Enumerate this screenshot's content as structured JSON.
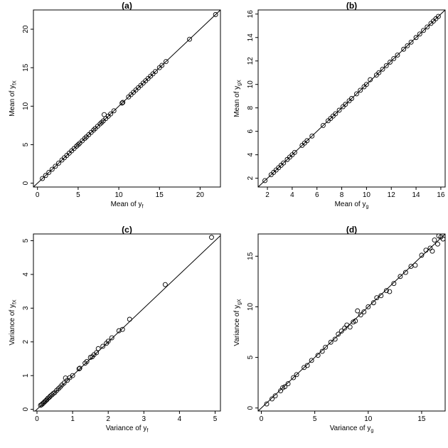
{
  "chart_data": [
    {
      "id": "a",
      "type": "scatter",
      "title": "(a)",
      "xlabel": {
        "main": "Mean of y",
        "sub": "f"
      },
      "ylabel": {
        "main": "Mean of y",
        "sub": "fX"
      },
      "xlim": [
        -0.5,
        22.5
      ],
      "ylim": [
        -0.5,
        22.5
      ],
      "xticks": [
        0,
        5,
        10,
        15,
        20
      ],
      "yticks": [
        0,
        5,
        10,
        15,
        20
      ],
      "reference_line": "y = x",
      "points": [
        [
          0.6,
          0.6
        ],
        [
          1.0,
          1.0
        ],
        [
          1.4,
          1.4
        ],
        [
          1.8,
          1.8
        ],
        [
          2.2,
          2.2
        ],
        [
          2.6,
          2.6
        ],
        [
          3.0,
          3.0
        ],
        [
          3.3,
          3.3
        ],
        [
          3.6,
          3.6
        ],
        [
          3.9,
          3.9
        ],
        [
          4.2,
          4.2
        ],
        [
          4.5,
          4.5
        ],
        [
          4.8,
          4.8
        ],
        [
          5.0,
          5.0
        ],
        [
          5.2,
          5.2
        ],
        [
          5.5,
          5.5
        ],
        [
          5.8,
          5.8
        ],
        [
          6.0,
          6.0
        ],
        [
          6.3,
          6.3
        ],
        [
          6.6,
          6.6
        ],
        [
          6.9,
          6.9
        ],
        [
          7.1,
          7.1
        ],
        [
          7.4,
          7.4
        ],
        [
          7.7,
          7.7
        ],
        [
          7.9,
          7.9
        ],
        [
          8.1,
          8.1
        ],
        [
          8.2,
          8.9
        ],
        [
          8.4,
          8.4
        ],
        [
          8.7,
          8.7
        ],
        [
          9.0,
          9.0
        ],
        [
          9.4,
          9.4
        ],
        [
          10.4,
          10.4
        ],
        [
          10.5,
          10.5
        ],
        [
          11.2,
          11.2
        ],
        [
          11.5,
          11.5
        ],
        [
          11.8,
          11.8
        ],
        [
          12.1,
          12.1
        ],
        [
          12.4,
          12.4
        ],
        [
          12.7,
          12.7
        ],
        [
          13.0,
          13.0
        ],
        [
          13.3,
          13.3
        ],
        [
          13.6,
          13.6
        ],
        [
          13.9,
          13.9
        ],
        [
          14.2,
          14.2
        ],
        [
          14.5,
          14.5
        ],
        [
          15.0,
          15.0
        ],
        [
          15.3,
          15.3
        ],
        [
          15.8,
          15.8
        ],
        [
          18.7,
          18.7
        ],
        [
          21.9,
          21.9
        ]
      ]
    },
    {
      "id": "b",
      "type": "scatter",
      "title": "(b)",
      "xlabel": {
        "main": "Mean of y",
        "sub": "g"
      },
      "ylabel": {
        "main": "Mean of y",
        "sub": "gX"
      },
      "xlim": [
        1.25,
        16.35
      ],
      "ylim": [
        1.25,
        16.35
      ],
      "xticks": [
        2,
        4,
        6,
        8,
        10,
        12,
        14,
        16
      ],
      "yticks": [
        2,
        4,
        6,
        8,
        10,
        12,
        14,
        16
      ],
      "reference_line": "y = x",
      "points": [
        [
          1.8,
          1.8
        ],
        [
          2.3,
          2.3
        ],
        [
          2.5,
          2.5
        ],
        [
          2.7,
          2.7
        ],
        [
          2.9,
          2.9
        ],
        [
          3.1,
          3.1
        ],
        [
          3.3,
          3.3
        ],
        [
          3.6,
          3.6
        ],
        [
          3.8,
          3.8
        ],
        [
          4.0,
          4.0
        ],
        [
          4.2,
          4.2
        ],
        [
          4.8,
          4.8
        ],
        [
          5.0,
          5.0
        ],
        [
          5.2,
          5.2
        ],
        [
          5.6,
          5.6
        ],
        [
          6.5,
          6.5
        ],
        [
          6.9,
          6.9
        ],
        [
          7.1,
          7.1
        ],
        [
          7.3,
          7.3
        ],
        [
          7.5,
          7.5
        ],
        [
          7.8,
          7.8
        ],
        [
          8.1,
          8.1
        ],
        [
          8.3,
          8.3
        ],
        [
          8.6,
          8.6
        ],
        [
          8.8,
          8.8
        ],
        [
          9.2,
          9.2
        ],
        [
          9.5,
          9.5
        ],
        [
          9.8,
          9.8
        ],
        [
          10.0,
          10.0
        ],
        [
          10.3,
          10.4
        ],
        [
          10.8,
          10.8
        ],
        [
          11.0,
          11.0
        ],
        [
          11.3,
          11.3
        ],
        [
          11.6,
          11.6
        ],
        [
          11.9,
          11.9
        ],
        [
          12.2,
          12.2
        ],
        [
          12.5,
          12.5
        ],
        [
          13.0,
          13.0
        ],
        [
          13.3,
          13.3
        ],
        [
          13.6,
          13.6
        ],
        [
          14.0,
          14.0
        ],
        [
          14.3,
          14.3
        ],
        [
          14.6,
          14.6
        ],
        [
          14.9,
          14.9
        ],
        [
          15.2,
          15.2
        ],
        [
          15.4,
          15.4
        ],
        [
          15.6,
          15.6
        ],
        [
          15.8,
          15.8
        ]
      ]
    },
    {
      "id": "c",
      "type": "scatter",
      "title": "(c)",
      "xlabel": {
        "main": "Variance of y",
        "sub": "f"
      },
      "ylabel": {
        "main": "Variance of y",
        "sub": "fX"
      },
      "xlim": [
        -0.1,
        5.15
      ],
      "ylim": [
        -0.05,
        5.2
      ],
      "xticks": [
        0,
        1,
        2,
        3,
        4,
        5
      ],
      "yticks": [
        0,
        1,
        2,
        3,
        4,
        5
      ],
      "reference_line": "y = x",
      "points": [
        [
          0.1,
          0.12
        ],
        [
          0.13,
          0.14
        ],
        [
          0.16,
          0.17
        ],
        [
          0.19,
          0.2
        ],
        [
          0.22,
          0.23
        ],
        [
          0.25,
          0.26
        ],
        [
          0.28,
          0.29
        ],
        [
          0.31,
          0.33
        ],
        [
          0.35,
          0.36
        ],
        [
          0.38,
          0.4
        ],
        [
          0.42,
          0.43
        ],
        [
          0.46,
          0.47
        ],
        [
          0.5,
          0.5
        ],
        [
          0.55,
          0.56
        ],
        [
          0.6,
          0.61
        ],
        [
          0.65,
          0.66
        ],
        [
          0.7,
          0.72
        ],
        [
          0.76,
          0.78
        ],
        [
          0.8,
          0.93
        ],
        [
          0.85,
          0.86
        ],
        [
          0.92,
          0.94
        ],
        [
          1.0,
          1.0
        ],
        [
          1.18,
          1.2
        ],
        [
          1.2,
          1.22
        ],
        [
          1.35,
          1.37
        ],
        [
          1.4,
          1.42
        ],
        [
          1.5,
          1.54
        ],
        [
          1.55,
          1.56
        ],
        [
          1.6,
          1.62
        ],
        [
          1.67,
          1.68
        ],
        [
          1.72,
          1.8
        ],
        [
          1.85,
          1.87
        ],
        [
          1.95,
          1.96
        ],
        [
          2.0,
          2.02
        ],
        [
          2.1,
          2.12
        ],
        [
          2.3,
          2.33
        ],
        [
          2.4,
          2.37
        ],
        [
          2.6,
          2.67
        ],
        [
          3.6,
          3.7
        ],
        [
          4.9,
          5.1
        ]
      ]
    },
    {
      "id": "d",
      "type": "scatter",
      "title": "(d)",
      "xlabel": {
        "main": "Variance of y",
        "sub": "g"
      },
      "ylabel": {
        "main": "Variance of y",
        "sub": "gX"
      },
      "xlim": [
        -0.3,
        17.2
      ],
      "ylim": [
        -0.3,
        17.2
      ],
      "xticks": [
        0,
        5,
        10,
        15
      ],
      "yticks": [
        0,
        5,
        10,
        15
      ],
      "reference_line": "y = x",
      "points": [
        [
          0.5,
          0.4
        ],
        [
          1.0,
          0.9
        ],
        [
          1.3,
          1.2
        ],
        [
          1.8,
          1.7
        ],
        [
          2.0,
          2.0
        ],
        [
          2.2,
          2.1
        ],
        [
          2.5,
          2.4
        ],
        [
          3.0,
          3.0
        ],
        [
          3.3,
          3.3
        ],
        [
          4.0,
          4.0
        ],
        [
          4.3,
          4.2
        ],
        [
          4.7,
          4.7
        ],
        [
          5.3,
          5.2
        ],
        [
          5.7,
          5.6
        ],
        [
          6.0,
          6.0
        ],
        [
          6.5,
          6.5
        ],
        [
          6.9,
          6.8
        ],
        [
          7.2,
          7.3
        ],
        [
          7.5,
          7.6
        ],
        [
          7.8,
          7.9
        ],
        [
          8.0,
          8.2
        ],
        [
          8.3,
          8.0
        ],
        [
          8.6,
          8.5
        ],
        [
          8.8,
          8.6
        ],
        [
          9.0,
          9.6
        ],
        [
          9.3,
          9.2
        ],
        [
          9.6,
          9.5
        ],
        [
          10.0,
          10.0
        ],
        [
          10.5,
          10.4
        ],
        [
          10.8,
          10.9
        ],
        [
          11.2,
          11.1
        ],
        [
          11.7,
          11.6
        ],
        [
          12.0,
          11.5
        ],
        [
          12.4,
          12.3
        ],
        [
          13.0,
          13.0
        ],
        [
          13.5,
          13.4
        ],
        [
          14.0,
          14.0
        ],
        [
          14.4,
          14.1
        ],
        [
          15.0,
          15.1
        ],
        [
          15.4,
          15.6
        ],
        [
          15.8,
          15.8
        ],
        [
          16.0,
          15.5
        ],
        [
          16.2,
          16.6
        ],
        [
          16.5,
          16.2
        ],
        [
          16.8,
          16.9
        ],
        [
          17.0,
          16.7
        ],
        [
          16.6,
          17.0
        ]
      ]
    }
  ]
}
